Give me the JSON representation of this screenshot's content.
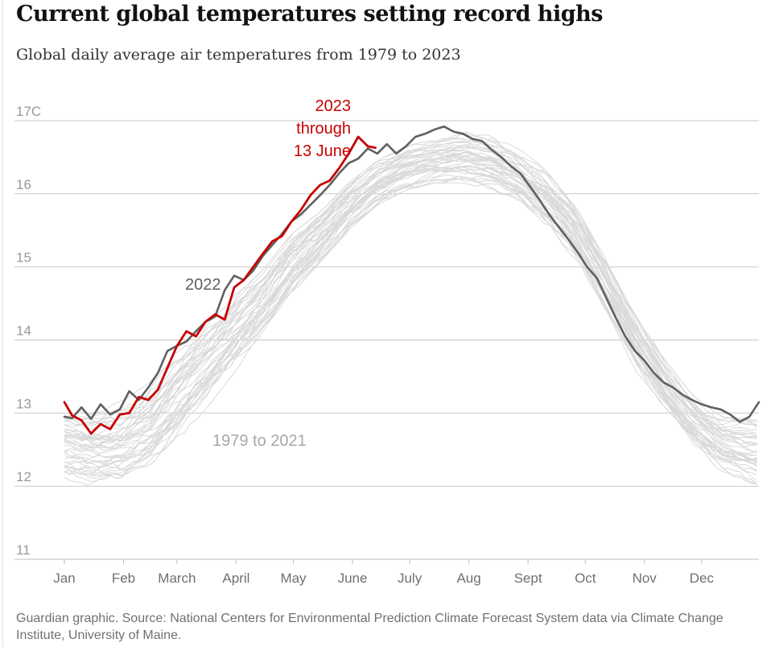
{
  "header": {
    "title": "Current global temperatures setting record highs",
    "subtitle": "Global daily average air temperatures from 1979 to 2023"
  },
  "footer": {
    "source": "Guardian graphic. Source: National Centers for Environmental Prediction Climate Forecast System data via Climate Change Institute, University of Maine."
  },
  "colors": {
    "highlight": "#c70000",
    "year2022": "#606060",
    "history": "#d9d9d9",
    "grid": "#c8c8c8",
    "tick_text": "#999999"
  },
  "chart_data": {
    "type": "line",
    "title": "Current global temperatures setting record highs",
    "ylabel": "",
    "xlabel": "",
    "ylim": [
      11,
      17
    ],
    "xlim": [
      1,
      365
    ],
    "y_ticks": [
      {
        "value": 17,
        "label": "17C"
      },
      {
        "value": 16,
        "label": "16"
      },
      {
        "value": 15,
        "label": "15"
      },
      {
        "value": 14,
        "label": "14"
      },
      {
        "value": 13,
        "label": "13"
      },
      {
        "value": 12,
        "label": "12"
      },
      {
        "value": 11,
        "label": "11"
      }
    ],
    "x_ticks": [
      {
        "day": 1,
        "label": "Jan"
      },
      {
        "day": 32,
        "label": "Feb"
      },
      {
        "day": 60,
        "label": "March"
      },
      {
        "day": 91,
        "label": "April"
      },
      {
        "day": 121,
        "label": "May"
      },
      {
        "day": 152,
        "label": "June"
      },
      {
        "day": 182,
        "label": "July"
      },
      {
        "day": 213,
        "label": "Aug"
      },
      {
        "day": 244,
        "label": "Sept"
      },
      {
        "day": 274,
        "label": "Oct"
      },
      {
        "day": 305,
        "label": "Nov"
      },
      {
        "day": 335,
        "label": "Dec"
      }
    ],
    "x_unit": "day of year",
    "grid": true,
    "annotations": {
      "y2023": [
        "2023",
        "through",
        "13 June"
      ],
      "y2022": "2022",
      "history": "1979 to 2021"
    },
    "series": [
      {
        "name": "2023",
        "role": "highlight",
        "x": [
          1,
          5,
          10,
          15,
          20,
          25,
          30,
          35,
          40,
          45,
          50,
          55,
          60,
          65,
          70,
          75,
          80,
          85,
          90,
          95,
          100,
          105,
          110,
          115,
          120,
          125,
          130,
          135,
          140,
          145,
          150,
          155,
          160,
          164
        ],
        "y": [
          13.15,
          12.97,
          12.9,
          12.72,
          12.85,
          12.78,
          12.98,
          13.0,
          13.22,
          13.18,
          13.32,
          13.62,
          13.92,
          14.12,
          14.05,
          14.25,
          14.35,
          14.28,
          14.72,
          14.82,
          15.0,
          15.18,
          15.35,
          15.42,
          15.62,
          15.78,
          15.98,
          16.12,
          16.18,
          16.35,
          16.55,
          16.78,
          16.65,
          16.63
        ]
      },
      {
        "name": "2022",
        "role": "comparison",
        "x": [
          1,
          5,
          10,
          15,
          20,
          25,
          30,
          35,
          40,
          45,
          50,
          55,
          60,
          65,
          70,
          75,
          80,
          85,
          90,
          95,
          100,
          105,
          110,
          115,
          120,
          125,
          130,
          135,
          140,
          145,
          150,
          155,
          160,
          165,
          170,
          175,
          180,
          185,
          190,
          195,
          200,
          205,
          210,
          215,
          220,
          225,
          230,
          235,
          240,
          245,
          250,
          255,
          260,
          265,
          270,
          275,
          280,
          285,
          290,
          295,
          300,
          305,
          310,
          315,
          320,
          325,
          330,
          335,
          340,
          345,
          350,
          355,
          360,
          365
        ],
        "y": [
          12.95,
          12.93,
          13.08,
          12.92,
          13.12,
          12.98,
          13.05,
          13.3,
          13.18,
          13.35,
          13.55,
          13.85,
          13.92,
          13.98,
          14.12,
          14.25,
          14.32,
          14.68,
          14.88,
          14.82,
          14.95,
          15.15,
          15.3,
          15.45,
          15.62,
          15.72,
          15.85,
          15.98,
          16.12,
          16.28,
          16.42,
          16.48,
          16.62,
          16.55,
          16.68,
          16.55,
          16.65,
          16.78,
          16.82,
          16.88,
          16.92,
          16.85,
          16.82,
          16.75,
          16.72,
          16.6,
          16.5,
          16.38,
          16.28,
          16.1,
          15.92,
          15.72,
          15.55,
          15.38,
          15.2,
          15.0,
          14.85,
          14.58,
          14.3,
          14.05,
          13.85,
          13.72,
          13.55,
          13.42,
          13.35,
          13.25,
          13.18,
          13.12,
          13.08,
          13.05,
          12.98,
          12.88,
          12.95,
          13.15
        ]
      },
      {
        "name": "1979 to 2021",
        "role": "history",
        "x_days": [
          1,
          15,
          30,
          45,
          60,
          75,
          90,
          105,
          120,
          135,
          150,
          165,
          180,
          195,
          210,
          225,
          240,
          255,
          270,
          285,
          300,
          315,
          330,
          345,
          365
        ],
        "band_low": [
          12.1,
          12.0,
          11.95,
          12.2,
          12.6,
          13.05,
          13.55,
          14.05,
          14.6,
          15.05,
          15.5,
          15.85,
          16.05,
          16.15,
          16.15,
          16.05,
          15.85,
          15.5,
          15.05,
          14.35,
          13.6,
          13.05,
          12.55,
          12.2,
          12.0
        ],
        "band_high": [
          13.1,
          13.05,
          13.15,
          13.4,
          13.85,
          14.2,
          14.6,
          14.95,
          15.45,
          15.75,
          16.15,
          16.45,
          16.65,
          16.75,
          16.85,
          16.8,
          16.6,
          16.3,
          15.85,
          15.15,
          14.4,
          13.75,
          13.25,
          12.95,
          12.9
        ]
      }
    ]
  }
}
